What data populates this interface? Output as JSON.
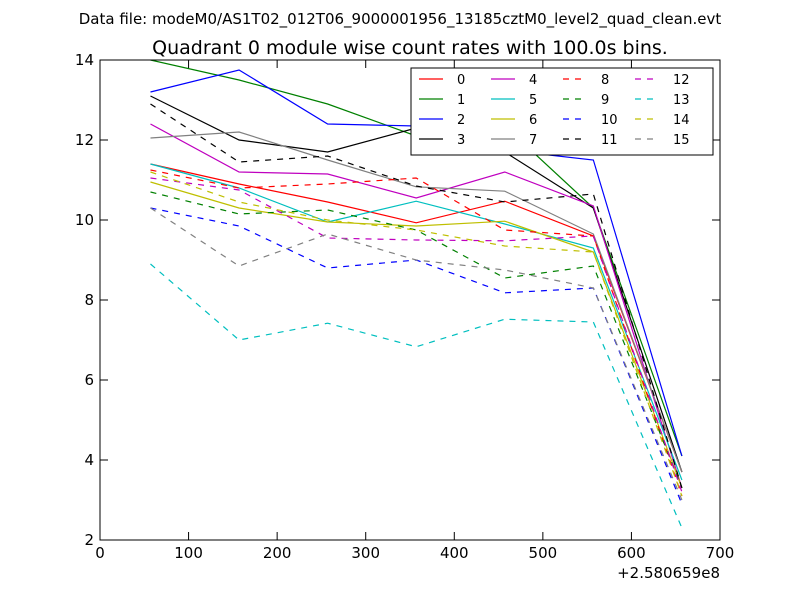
{
  "chart_data": {
    "type": "line",
    "suptitle": "Data file: modeM0/AS1T02_012T06_9000001956_13185cztM0_level2_quad_clean.evt",
    "title": "Quadrant 0 module wise count rates with 100.0s bins.",
    "xlabel": "",
    "ylabel": "",
    "x_offset_label": "+2.580659e8",
    "xlim": [
      0,
      700
    ],
    "ylim": [
      2,
      14
    ],
    "xticks": [
      0,
      100,
      200,
      300,
      400,
      500,
      600,
      700
    ],
    "yticks": [
      2,
      4,
      6,
      8,
      10,
      12,
      14
    ],
    "legend_position": "top-right",
    "legend_columns": 4,
    "grid": false,
    "x": [
      57,
      157,
      257,
      357,
      457,
      557,
      657
    ],
    "series": [
      {
        "name": "0",
        "color": "#ff0000",
        "dash": "solid",
        "values": [
          11.4,
          10.9,
          10.45,
          9.93,
          10.47,
          9.6,
          3.7
        ]
      },
      {
        "name": "1",
        "color": "#008000",
        "dash": "solid",
        "values": [
          14.0,
          13.5,
          12.9,
          12.1,
          12.35,
          10.3,
          4.1
        ]
      },
      {
        "name": "2",
        "color": "#0000ff",
        "dash": "solid",
        "values": [
          13.2,
          13.75,
          12.4,
          12.35,
          11.75,
          11.5,
          4.1
        ]
      },
      {
        "name": "3",
        "color": "#000000",
        "dash": "solid",
        "values": [
          13.1,
          12.0,
          11.7,
          12.3,
          11.7,
          10.3,
          3.7
        ]
      },
      {
        "name": "4",
        "color": "#bf00bf",
        "dash": "solid",
        "values": [
          12.4,
          11.2,
          11.15,
          10.55,
          11.2,
          10.35,
          3.3
        ]
      },
      {
        "name": "5",
        "color": "#00bfbf",
        "dash": "solid",
        "values": [
          11.4,
          10.8,
          9.95,
          10.47,
          9.9,
          9.3,
          3.5
        ]
      },
      {
        "name": "6",
        "color": "#bfbf00",
        "dash": "solid",
        "values": [
          10.95,
          10.3,
          9.95,
          9.85,
          9.97,
          9.2,
          3.3
        ]
      },
      {
        "name": "7",
        "color": "#808080",
        "dash": "solid",
        "values": [
          12.05,
          12.2,
          11.5,
          10.83,
          10.72,
          9.65,
          3.7
        ]
      },
      {
        "name": "8",
        "color": "#ff0000",
        "dash": "dashed",
        "values": [
          11.25,
          10.8,
          10.9,
          11.05,
          9.75,
          9.6,
          3.1
        ]
      },
      {
        "name": "9",
        "color": "#008000",
        "dash": "dashed",
        "values": [
          10.7,
          10.15,
          10.25,
          9.75,
          8.55,
          8.85,
          3.3
        ]
      },
      {
        "name": "10",
        "color": "#0000ff",
        "dash": "dashed",
        "values": [
          10.3,
          9.85,
          8.8,
          9.0,
          8.18,
          8.3,
          2.9
        ]
      },
      {
        "name": "11",
        "color": "#000000",
        "dash": "dashed",
        "values": [
          12.9,
          11.45,
          11.6,
          10.85,
          10.45,
          10.65,
          3.3
        ]
      },
      {
        "name": "12",
        "color": "#bf00bf",
        "dash": "dashed",
        "values": [
          11.05,
          10.75,
          9.55,
          9.5,
          9.48,
          9.6,
          3.2
        ]
      },
      {
        "name": "13",
        "color": "#00bfbf",
        "dash": "dashed",
        "values": [
          8.9,
          7.0,
          7.42,
          6.83,
          7.52,
          7.45,
          2.3
        ]
      },
      {
        "name": "14",
        "color": "#bfbf00",
        "dash": "dashed",
        "values": [
          11.2,
          10.45,
          10.0,
          9.75,
          9.35,
          9.2,
          3.1
        ]
      },
      {
        "name": "15",
        "color": "#808080",
        "dash": "dashed",
        "values": [
          10.3,
          8.85,
          9.65,
          9.0,
          8.75,
          8.3,
          3.0
        ]
      }
    ]
  }
}
